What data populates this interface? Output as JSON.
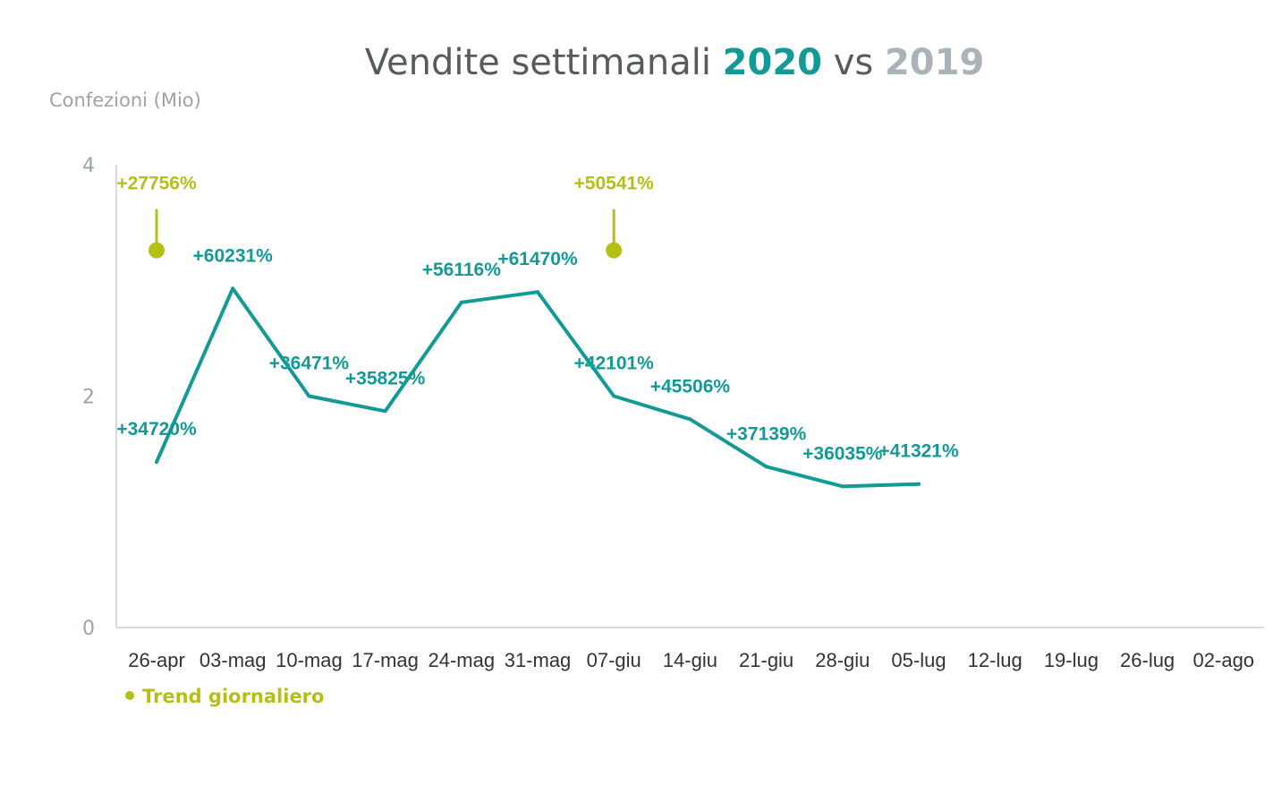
{
  "chart_data": {
    "type": "line",
    "title": {
      "main": "Vendite settimanali",
      "highlight": "2020",
      "connector": "vs",
      "compare": "2019"
    },
    "ylabel": "Confezioni (Mio)",
    "ylim": [
      0,
      4
    ],
    "yticks": [
      "0",
      "2",
      "4"
    ],
    "categories": [
      "26-apr",
      "03-mag",
      "10-mag",
      "17-mag",
      "24-mag",
      "31-mag",
      "07-giu",
      "14-giu",
      "21-giu",
      "28-giu",
      "05-lug",
      "12-lug",
      "19-lug",
      "26-lug",
      "02-ago"
    ],
    "series": [
      {
        "color": "#139a97",
        "values": [
          1.43,
          2.93,
          2.0,
          1.87,
          2.81,
          2.9,
          2.0,
          1.8,
          1.39,
          1.22,
          1.24,
          null,
          null,
          null,
          null
        ],
        "labels": [
          "+34720%",
          "+60231%",
          "+36471%",
          "+35825%",
          "+56116%",
          "+61470%",
          "+42101%",
          "+45506%",
          "+37139%",
          "+36035%",
          "+41321%",
          null,
          null,
          null,
          null
        ]
      }
    ],
    "markers": [
      {
        "category": "26-apr",
        "value": 3.26,
        "label": "+27756%"
      },
      {
        "category": "07-giu",
        "value": 3.26,
        "label": "+50541%"
      }
    ],
    "marker_color": "#b6bf14",
    "legend": {
      "label": "Trend giornaliero",
      "placement": "bottom-left"
    },
    "grid": false
  }
}
